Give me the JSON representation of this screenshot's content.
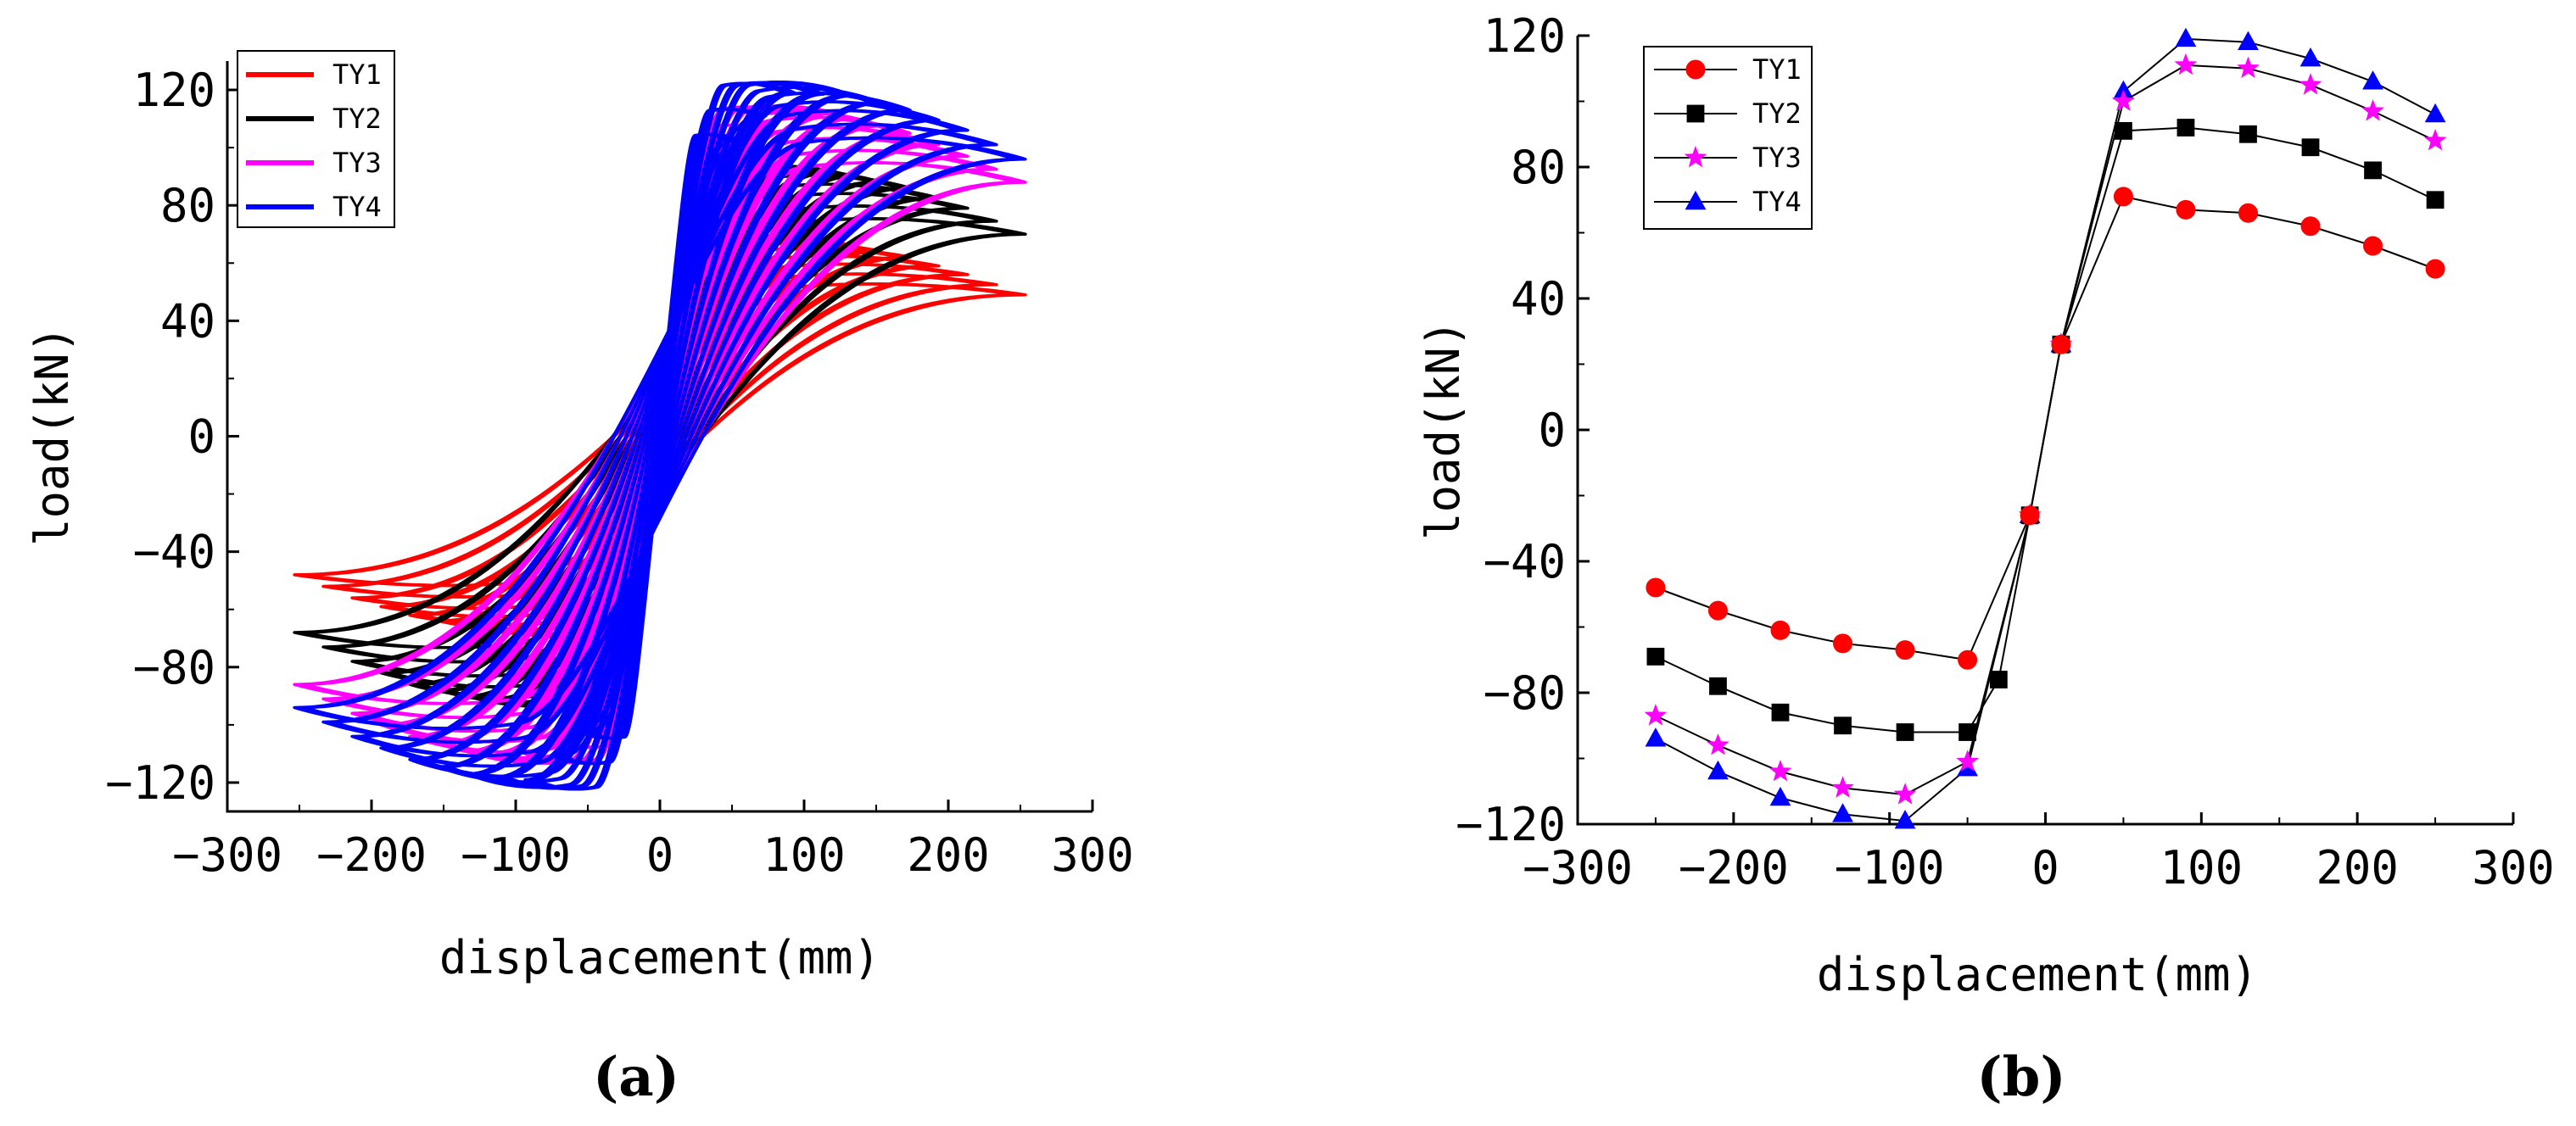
{
  "chart_data": [
    {
      "type": "line",
      "panel_label": "(a)",
      "xlabel": "displacement(mm)",
      "ylabel": "load(kN)",
      "xlim": [
        -300,
        300
      ],
      "ylim": [
        -130,
        130
      ],
      "xticks": [
        -300,
        -200,
        -100,
        0,
        100,
        200,
        300
      ],
      "yticks": [
        -120,
        -80,
        -40,
        0,
        40,
        80,
        120
      ],
      "legend_position": "top-left",
      "series": [
        {
          "name": "TY1",
          "color": "#ff0000",
          "backbone_pos": [
            [
              10,
              26
            ],
            [
              50,
              71
            ],
            [
              90,
              68
            ],
            [
              130,
              66
            ],
            [
              170,
              62
            ],
            [
              210,
              56
            ],
            [
              250,
              49
            ]
          ],
          "backbone_neg": [
            [
              -10,
              -26
            ],
            [
              -50,
              -70
            ],
            [
              -90,
              -68
            ],
            [
              -130,
              -66
            ],
            [
              -170,
              -62
            ],
            [
              -210,
              -56
            ],
            [
              -250,
              -48
            ]
          ]
        },
        {
          "name": "TY2",
          "color": "#000000",
          "backbone_pos": [
            [
              10,
              26
            ],
            [
              50,
              91
            ],
            [
              90,
              92
            ],
            [
              130,
              90
            ],
            [
              170,
              86
            ],
            [
              210,
              79
            ],
            [
              250,
              70
            ]
          ],
          "backbone_neg": [
            [
              -10,
              -26
            ],
            [
              -50,
              -92
            ],
            [
              -90,
              -92
            ],
            [
              -130,
              -90
            ],
            [
              -170,
              -86
            ],
            [
              -210,
              -78
            ],
            [
              -250,
              -68
            ]
          ]
        },
        {
          "name": "TY3",
          "color": "#ff00ff",
          "backbone_pos": [
            [
              10,
              26
            ],
            [
              50,
              100
            ],
            [
              90,
              111
            ],
            [
              130,
              110
            ],
            [
              170,
              105
            ],
            [
              210,
              97
            ],
            [
              250,
              88
            ]
          ],
          "backbone_neg": [
            [
              -10,
              -26
            ],
            [
              -50,
              -101
            ],
            [
              -90,
              -110
            ],
            [
              -130,
              -109
            ],
            [
              -170,
              -104
            ],
            [
              -210,
              -96
            ],
            [
              -250,
              -86
            ]
          ]
        },
        {
          "name": "TY4",
          "color": "#0000ff",
          "backbone_pos": [
            [
              10,
              26
            ],
            [
              50,
              103
            ],
            [
              90,
              119
            ],
            [
              130,
              118
            ],
            [
              170,
              113
            ],
            [
              210,
              106
            ],
            [
              250,
              96
            ]
          ],
          "backbone_neg": [
            [
              -10,
              -26
            ],
            [
              -50,
              -103
            ],
            [
              -90,
              -119
            ],
            [
              -130,
              -117
            ],
            [
              -170,
              -112
            ],
            [
              -210,
              -104
            ],
            [
              -250,
              -94
            ]
          ]
        }
      ]
    },
    {
      "type": "line",
      "panel_label": "(b)",
      "xlabel": "displacement(mm)",
      "ylabel": "load(kN)",
      "xlim": [
        -300,
        300
      ],
      "ylim": [
        -120,
        120
      ],
      "xticks": [
        -300,
        -200,
        -100,
        0,
        100,
        200,
        300
      ],
      "yticks": [
        -120,
        -80,
        -40,
        0,
        40,
        80,
        120
      ],
      "legend_position": "top-left",
      "x": [
        -250,
        -210,
        -170,
        -130,
        -90,
        -50,
        -30,
        -10,
        10,
        50,
        90,
        130,
        170,
        210,
        250
      ],
      "series": [
        {
          "name": "TY1",
          "color": "#ff0000",
          "marker": "circle",
          "values": [
            -48,
            -55,
            -61,
            -65,
            -67,
            -70,
            null,
            -26,
            26,
            71,
            67,
            66,
            62,
            56,
            49
          ]
        },
        {
          "name": "TY2",
          "color": "#000000",
          "marker": "square",
          "values": [
            -69,
            -78,
            -86,
            -90,
            -92,
            -92,
            -76,
            -26,
            26,
            91,
            92,
            90,
            86,
            79,
            70
          ]
        },
        {
          "name": "TY3",
          "color": "#ff00ff",
          "marker": "star",
          "values": [
            -87,
            -96,
            -104,
            -109,
            -111,
            -101,
            null,
            -26,
            26,
            100,
            111,
            110,
            105,
            97,
            88
          ]
        },
        {
          "name": "TY4",
          "color": "#0000ff",
          "marker": "triangle",
          "values": [
            -94,
            -104,
            -112,
            -117,
            -119,
            -103,
            null,
            -26,
            26,
            103,
            119,
            118,
            113,
            106,
            96
          ]
        }
      ]
    }
  ]
}
